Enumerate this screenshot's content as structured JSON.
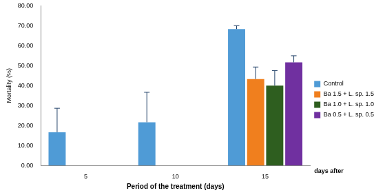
{
  "chart_data": {
    "type": "bar",
    "x_label": "Period of the treatment (days)",
    "y_label": "Mortality (%)",
    "annotation": "days after",
    "categories": [
      "5",
      "10",
      "15"
    ],
    "series": [
      {
        "name": "Control",
        "color": "#4f9bd6",
        "values": [
          16.67,
          21.67,
          68.33
        ],
        "errors": [
          12.0,
          15.0,
          1.7
        ]
      },
      {
        "name": "Ba 1.5 + L. sp. 1.5",
        "color": "#f07f1e",
        "values": [
          0,
          0,
          43.33
        ],
        "errors": [
          0,
          0,
          6.0
        ]
      },
      {
        "name": "Ba 1.0 + L. sp. 1.0",
        "color": "#2e5e1f",
        "values": [
          0,
          0,
          40.0
        ],
        "errors": [
          0,
          0,
          7.5
        ]
      },
      {
        "name": "Ba 0.5 + L. sp. 0.5",
        "color": "#7030a0",
        "values": [
          0,
          0,
          51.67
        ],
        "errors": [
          0,
          0,
          3.3
        ]
      }
    ],
    "ylim": [
      0,
      80
    ],
    "yticks": [
      {
        "value": 0,
        "label": "0.00"
      },
      {
        "value": 10,
        "label": "10.00"
      },
      {
        "value": 20,
        "label": "20.00"
      },
      {
        "value": 30,
        "label": "30.00"
      },
      {
        "value": 40,
        "label": "40.00"
      },
      {
        "value": 50,
        "label": "50.00"
      },
      {
        "value": 60,
        "label": "60.00"
      },
      {
        "value": 70,
        "label": "70.00"
      },
      {
        "value": 80,
        "label": "80.00"
      }
    ],
    "grid": false,
    "legend": "right"
  }
}
